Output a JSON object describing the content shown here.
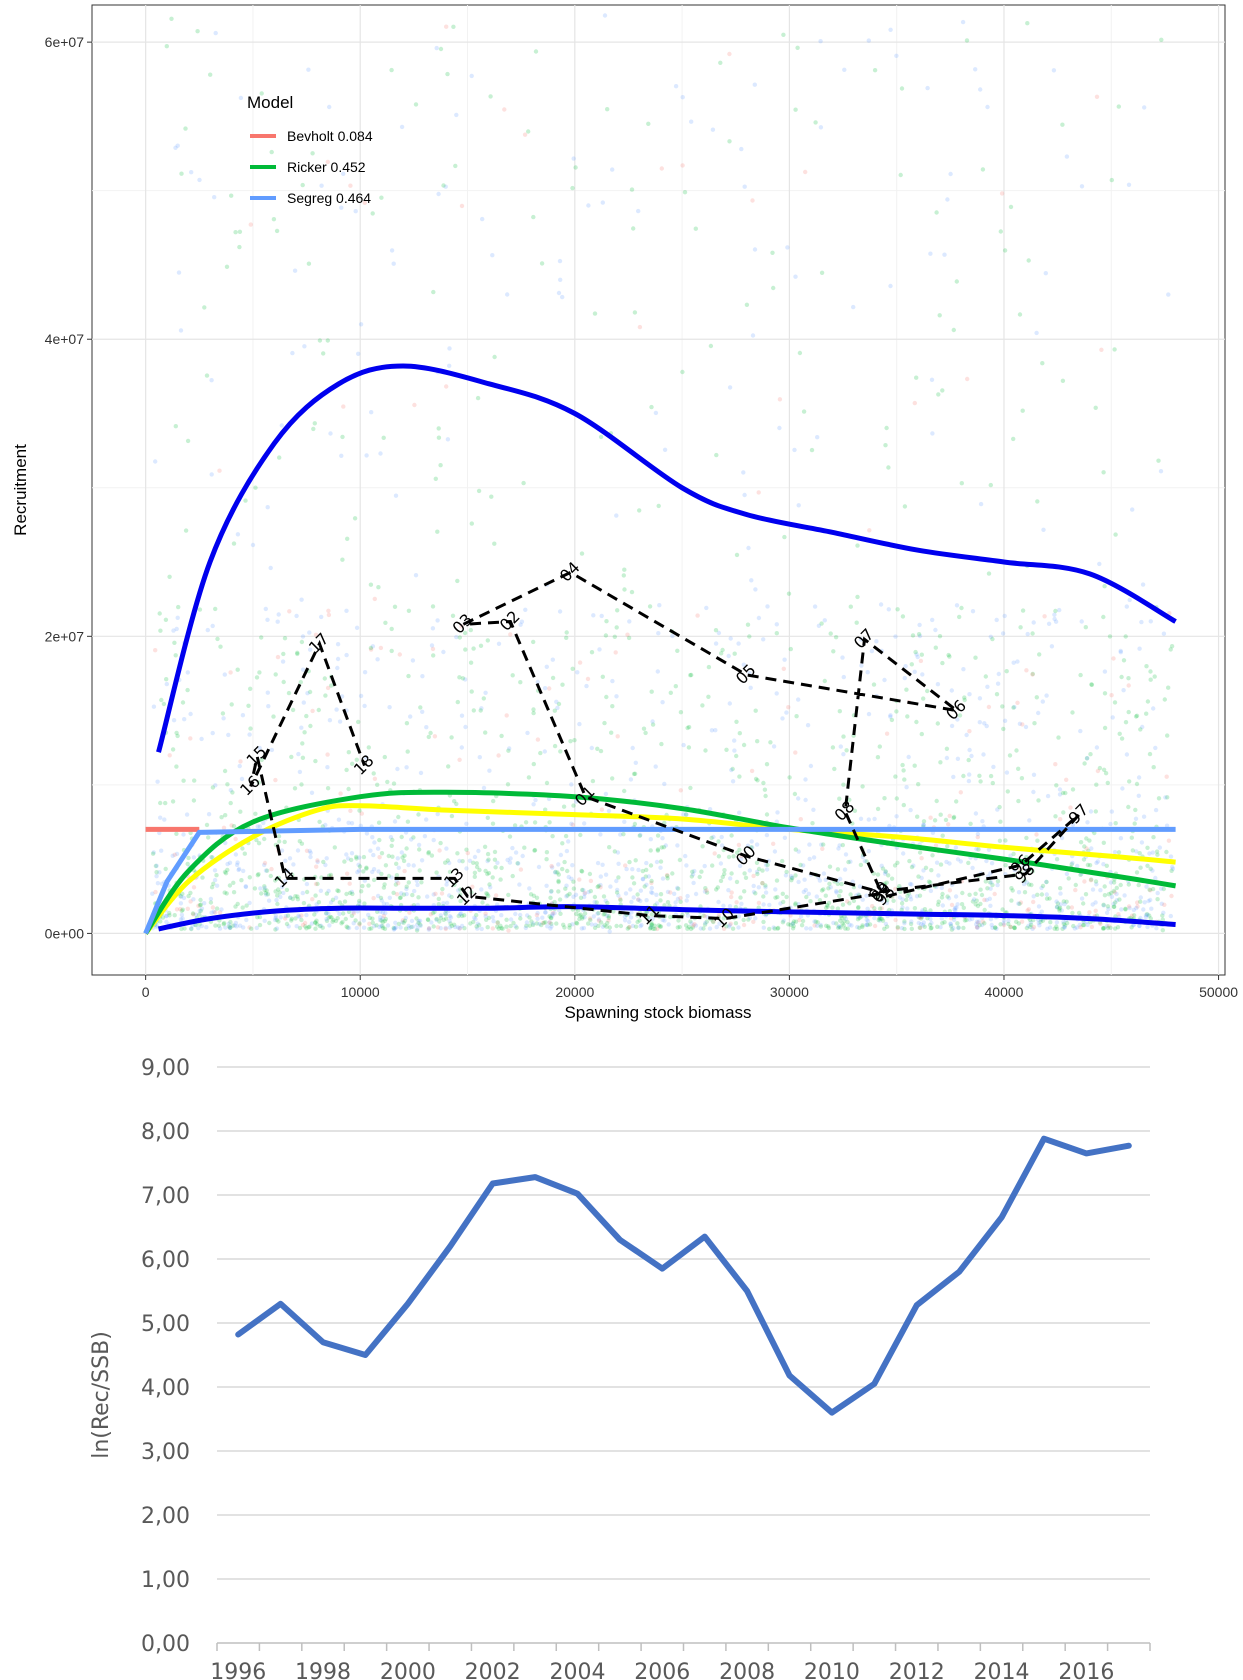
{
  "chart_data": [
    {
      "type": "scatter",
      "xlabel": "Spawning stock biomass",
      "ylabel": "Recruitment",
      "xlim": [
        -2500,
        50300
      ],
      "ylim": [
        -2800000,
        62500000
      ],
      "x_ticks": [
        0,
        10000,
        20000,
        30000,
        40000,
        50000
      ],
      "x_tick_labels": [
        "0",
        "10000",
        "20000",
        "30000",
        "40000",
        "50000"
      ],
      "y_ticks": [
        0,
        20000000,
        40000000,
        60000000
      ],
      "y_tick_labels": [
        "0e+00",
        "2e+07",
        "4e+07",
        "6e+07"
      ],
      "grid": true,
      "legend": {
        "title": "Model",
        "placement": "top-left",
        "entries": [
          {
            "label": "Bevholt 0.084",
            "color": "#f8766d"
          },
          {
            "label": "Ricker 0.452",
            "color": "#00ba38"
          },
          {
            "label": "Segreg 0.464",
            "color": "#619cff"
          }
        ]
      },
      "models": [
        {
          "name": "Bevholt 0.084",
          "color": "#f8766d",
          "weight": 0.084,
          "x": [
            0,
            500,
            1000,
            1500,
            2000,
            2500
          ],
          "y": [
            7000000,
            7000000,
            7000000,
            7000000,
            7000000,
            7000000
          ]
        },
        {
          "name": "Ricker 0.452",
          "color": "#00ba38",
          "weight": 0.452,
          "x": [
            0,
            2000,
            5000,
            10000,
            14000,
            20000,
            25000,
            30000,
            35000,
            40000,
            45000,
            48000
          ],
          "y": [
            0,
            4200000,
            7500000,
            9200000,
            9500000,
            9200000,
            8400000,
            7100000,
            6000000,
            5000000,
            3900000,
            3200000
          ]
        },
        {
          "name": "Segreg 0.464",
          "color": "#619cff",
          "weight": 0.464,
          "x": [
            0,
            1000,
            2500,
            10000,
            20000,
            30000,
            40000,
            48000
          ],
          "y": [
            0,
            3500000,
            6800000,
            7000000,
            7000000,
            7000000,
            7000000,
            7000000
          ]
        }
      ],
      "model_average": {
        "color": "#ffff00",
        "x": [
          0,
          2000,
          5000,
          8000,
          10000,
          14000,
          20000,
          25000,
          30000,
          35000,
          40000,
          45000,
          48000
        ],
        "y": [
          0,
          3500000,
          6500000,
          8300000,
          8600000,
          8300000,
          8000000,
          7700000,
          7000000,
          6500000,
          5800000,
          5200000,
          4800000
        ]
      },
      "confidence_interval": {
        "color": "#0000ee",
        "x": [
          600,
          3000,
          6000,
          9000,
          12000,
          16000,
          20000,
          25000,
          28000,
          32000,
          36000,
          40000,
          44000,
          48000
        ],
        "upper": [
          12200000,
          25000000,
          33000000,
          37000000,
          38200000,
          37000000,
          35000000,
          30000000,
          28200000,
          27000000,
          25800000,
          25000000,
          24200000,
          21000000
        ],
        "lower": [
          300000,
          1000000,
          1500000,
          1700000,
          1700000,
          1700000,
          1800000,
          1600000,
          1500000,
          1400000,
          1300000,
          1200000,
          1000000,
          600000
        ]
      },
      "observations": {
        "line_style": "dashed",
        "color": "#000000",
        "points": [
          {
            "label": "95",
            "x": 34500,
            "y": 2500000
          },
          {
            "label": "96",
            "x": 40800,
            "y": 4600000
          },
          {
            "label": "97",
            "x": 43500,
            "y": 8000000
          },
          {
            "label": "98",
            "x": 41000,
            "y": 4000000
          },
          {
            "label": "99",
            "x": 34200,
            "y": 2800000
          },
          {
            "label": "00",
            "x": 28000,
            "y": 5200000
          },
          {
            "label": "01",
            "x": 20500,
            "y": 9200000
          },
          {
            "label": "02",
            "x": 17000,
            "y": 21000000
          },
          {
            "label": "03",
            "x": 14800,
            "y": 20800000
          },
          {
            "label": "04",
            "x": 19800,
            "y": 24300000
          },
          {
            "label": "05",
            "x": 28000,
            "y": 17400000
          },
          {
            "label": "06",
            "x": 37800,
            "y": 15000000
          },
          {
            "label": "07",
            "x": 33500,
            "y": 19800000
          },
          {
            "label": "08",
            "x": 32600,
            "y": 8200000
          },
          {
            "label": "09",
            "x": 34300,
            "y": 2700000
          },
          {
            "label": "10",
            "x": 27000,
            "y": 1000000
          },
          {
            "label": "11",
            "x": 23500,
            "y": 1200000
          },
          {
            "label": "12",
            "x": 15000,
            "y": 2500000
          },
          {
            "label": "13",
            "x": 14400,
            "y": 3700000
          },
          {
            "label": "14",
            "x": 6500,
            "y": 3700000
          },
          {
            "label": "15",
            "x": 5200,
            "y": 11900000
          },
          {
            "label": "16",
            "x": 4900,
            "y": 9900000
          },
          {
            "label": "17",
            "x": 8100,
            "y": 19500000
          },
          {
            "label": "18",
            "x": 10200,
            "y": 11300000
          }
        ]
      },
      "simulated_points": {
        "colors": [
          "#00ba38",
          "#619cff",
          "#f8766d"
        ],
        "shown_as": "semi-transparent small dots"
      }
    },
    {
      "type": "line",
      "ylabel": "ln(Rec/SSB)",
      "ylim": [
        0,
        9
      ],
      "y_ticks": [
        0,
        1,
        2,
        3,
        4,
        5,
        6,
        7,
        8,
        9
      ],
      "y_tick_labels": [
        "0,00",
        "1,00",
        "2,00",
        "3,00",
        "4,00",
        "5,00",
        "6,00",
        "7,00",
        "8,00",
        "9,00"
      ],
      "x_tick_labels": [
        "1996",
        "1998",
        "2000",
        "2002",
        "2004",
        "2006",
        "2008",
        "2010",
        "2012",
        "2014",
        "2016"
      ],
      "x": [
        1996,
        1997,
        1998,
        1999,
        2000,
        2001,
        2002,
        2003,
        2004,
        2005,
        2006,
        2007,
        2008,
        2009,
        2010,
        2011,
        2012,
        2013,
        2014,
        2015,
        2016,
        2017
      ],
      "grid": true,
      "series": [
        {
          "color": "#4472c4",
          "values": [
            4.82,
            5.3,
            4.7,
            4.5,
            5.3,
            6.2,
            7.18,
            7.28,
            7.02,
            6.3,
            5.85,
            6.35,
            5.5,
            4.18,
            3.6,
            4.05,
            5.28,
            5.8,
            6.65,
            7.88,
            7.65,
            7.77
          ]
        }
      ]
    }
  ]
}
